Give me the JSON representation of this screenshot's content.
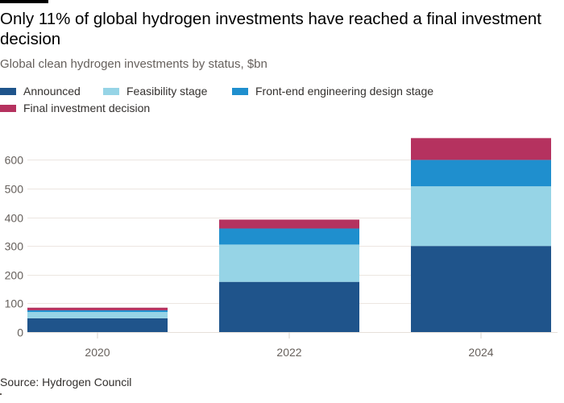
{
  "header": {
    "title": "Only 11% of global hydrogen investments have reached a final investment decision",
    "subtitle": "Global clean hydrogen investments by status, $bn"
  },
  "legend": [
    {
      "label": "Announced",
      "color": "#1f548b"
    },
    {
      "label": "Feasibility stage",
      "color": "#96d4e6"
    },
    {
      "label": "Front-end engineering design stage",
      "color": "#1f8fce"
    },
    {
      "label": "Final investment decision",
      "color": "#b5325f"
    }
  ],
  "footer": {
    "source": "Source: Hydrogen Council"
  },
  "chart_data": {
    "type": "bar",
    "stacked": true,
    "title": "Only 11% of global hydrogen investments have reached a final investment decision",
    "subtitle": "Global clean hydrogen investments by status, $bn",
    "xlabel": "",
    "ylabel": "",
    "categories": [
      "2020",
      "2022",
      "2024"
    ],
    "series": [
      {
        "name": "Announced",
        "color": "#1f548b",
        "values": [
          48,
          175,
          300
        ]
      },
      {
        "name": "Feasibility stage",
        "color": "#96d4e6",
        "values": [
          22,
          130,
          208
        ]
      },
      {
        "name": "Front-end engineering design stage",
        "color": "#1f8fce",
        "values": [
          6,
          56,
          92
        ]
      },
      {
        "name": "Final investment decision",
        "color": "#b5325f",
        "values": [
          9,
          31,
          76
        ]
      }
    ],
    "ylim": [
      0,
      680
    ],
    "yticks": [
      0,
      100,
      200,
      300,
      400,
      500,
      600
    ],
    "grid": true,
    "legend_position": "top-left",
    "source": "Source: Hydrogen Council"
  }
}
